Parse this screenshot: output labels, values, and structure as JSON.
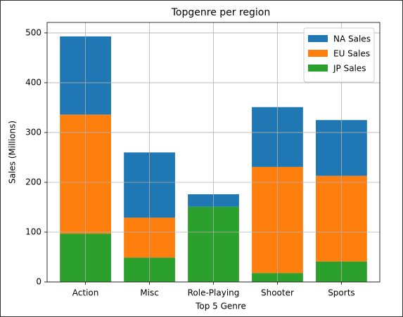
{
  "chart_data": {
    "type": "stacked_bar",
    "title": "Topgenre per region",
    "x_label": "Top 5 Genre",
    "y_label": "Sales (Millions)",
    "categories": [
      "Action",
      "Misc",
      "Role-Playing",
      "Shooter",
      "Sports"
    ],
    "series": [
      {
        "name": "NA Sales",
        "color": "#1f77b4",
        "values": [
          157,
          131,
          25,
          120,
          112
        ]
      },
      {
        "name": "EU Sales",
        "color": "#ff7f0e",
        "values": [
          239,
          80,
          0,
          213,
          172
        ]
      },
      {
        "name": "JP Sales",
        "color": "#2ca02c",
        "values": [
          97,
          49,
          151,
          18,
          41
        ]
      }
    ],
    "ylim": [
      0,
      521
    ],
    "yticks": [
      0,
      100,
      200,
      300,
      400,
      500
    ],
    "grid": true,
    "legend": "upper right"
  }
}
